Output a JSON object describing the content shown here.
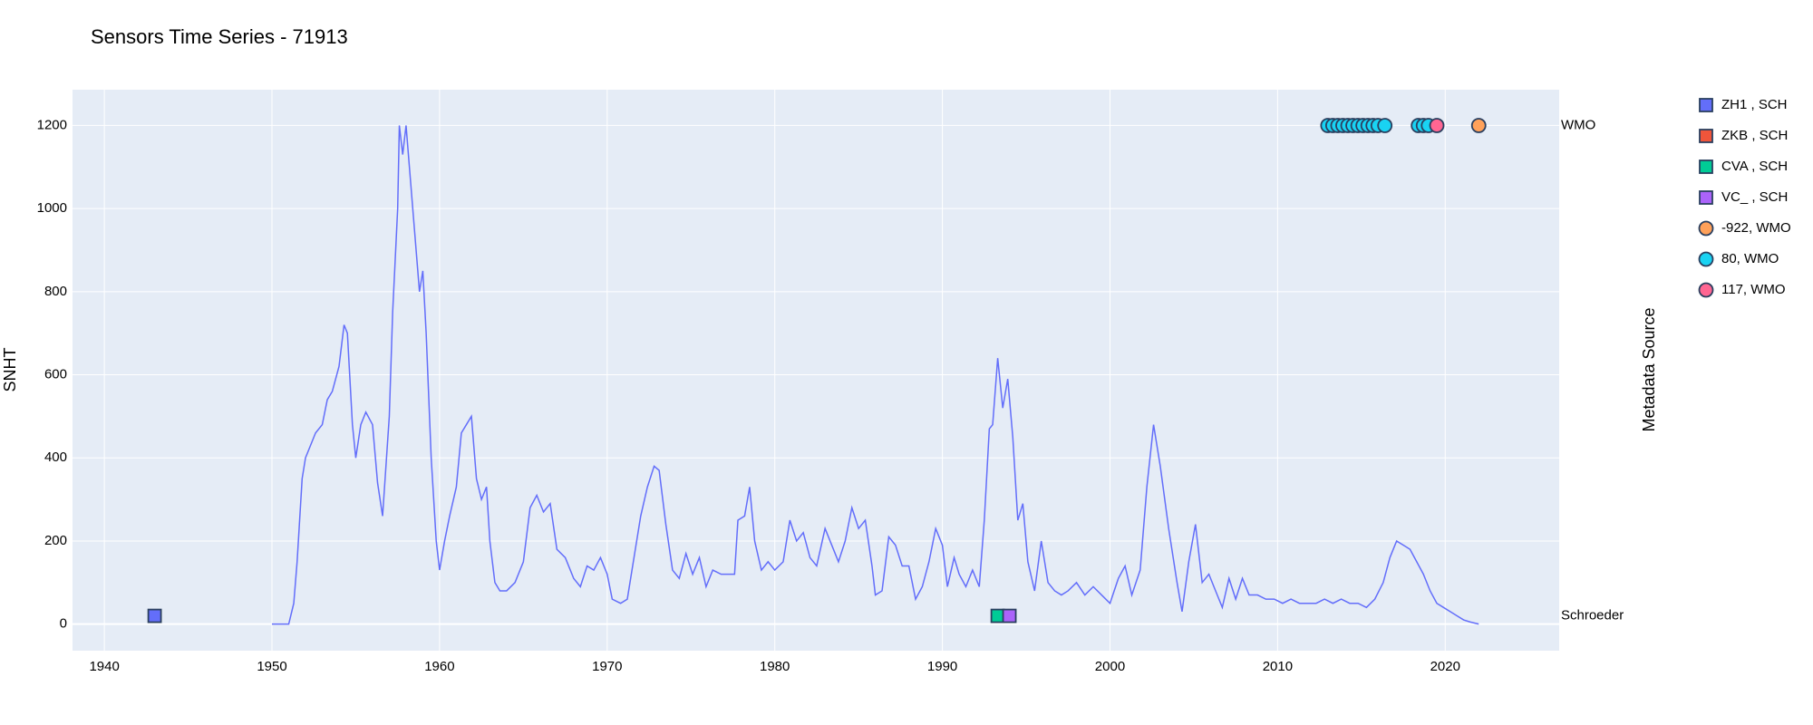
{
  "chart_data": {
    "type": "line",
    "title": "Sensors Time Series - 71913",
    "ylabel": "SNHT",
    "y2label": "Metadata Source",
    "xlim": [
      1938.1,
      2026.8
    ],
    "xticks": [
      1940,
      1950,
      1960,
      1970,
      1980,
      1990,
      2000,
      2010,
      2020
    ],
    "ylim": [
      -64,
      1286
    ],
    "yticks": [
      0,
      200,
      400,
      600,
      800,
      1000,
      1200
    ],
    "y2lim": [
      -0.071,
      1.073
    ],
    "y2ticks": [
      {
        "value": 0,
        "label": "Schroeder"
      },
      {
        "value": 1,
        "label": "WMO"
      }
    ],
    "grid": true,
    "background": "#e5ecf6",
    "legend": "right",
    "series": [
      {
        "type": "line",
        "color": "#636efa",
        "axis": "y",
        "x": [
          1950.0,
          1951.0,
          1951.3,
          1951.5,
          1951.8,
          1952.0,
          1952.3,
          1952.6,
          1953.0,
          1953.3,
          1953.6,
          1954.0,
          1954.3,
          1954.5,
          1954.8,
          1955.0,
          1955.3,
          1955.6,
          1956.0,
          1956.3,
          1956.6,
          1957.0,
          1957.2,
          1957.5,
          1957.6,
          1957.8,
          1958.0,
          1958.2,
          1958.5,
          1958.8,
          1959.0,
          1959.2,
          1959.5,
          1959.8,
          1960.0,
          1960.3,
          1960.6,
          1961.0,
          1961.3,
          1961.6,
          1961.9,
          1962.2,
          1962.5,
          1962.8,
          1963.0,
          1963.3,
          1963.6,
          1964.0,
          1964.5,
          1965.0,
          1965.4,
          1965.8,
          1966.2,
          1966.6,
          1967.0,
          1967.5,
          1968.0,
          1968.4,
          1968.8,
          1969.2,
          1969.6,
          1970.0,
          1970.3,
          1970.8,
          1971.2,
          1971.6,
          1972.0,
          1972.4,
          1972.8,
          1973.1,
          1973.5,
          1973.9,
          1974.3,
          1974.7,
          1975.1,
          1975.5,
          1975.9,
          1976.3,
          1976.8,
          1977.2,
          1977.6,
          1977.8,
          1978.2,
          1978.5,
          1978.8,
          1979.2,
          1979.6,
          1980.0,
          1980.5,
          1980.9,
          1981.3,
          1981.7,
          1982.1,
          1982.5,
          1983.0,
          1983.4,
          1983.8,
          1984.2,
          1984.6,
          1985.0,
          1985.4,
          1985.8,
          1986.0,
          1986.4,
          1986.8,
          1987.2,
          1987.6,
          1988.0,
          1988.4,
          1988.8,
          1989.2,
          1989.6,
          1990.0,
          1990.3,
          1990.7,
          1991.0,
          1991.4,
          1991.8,
          1992.2,
          1992.5,
          1992.8,
          1993.0,
          1993.3,
          1993.6,
          1993.9,
          1994.2,
          1994.5,
          1994.8,
          1995.1,
          1995.5,
          1995.9,
          1996.3,
          1996.7,
          1997.1,
          1997.5,
          1998.0,
          1998.5,
          1999.0,
          1999.5,
          2000.0,
          2000.5,
          2000.9,
          2001.3,
          2001.8,
          2002.2,
          2002.6,
          2003.0,
          2003.5,
          2004.0,
          2004.3,
          2004.7,
          2005.1,
          2005.5,
          2005.9,
          2006.3,
          2006.7,
          2007.1,
          2007.5,
          2007.9,
          2008.3,
          2008.8,
          2009.3,
          2009.8,
          2010.3,
          2010.8,
          2011.3,
          2011.8,
          2012.3,
          2012.8,
          2013.3,
          2013.8,
          2014.3,
          2014.8,
          2015.3,
          2015.8,
          2016.3,
          2016.7,
          2017.1,
          2017.5,
          2017.9,
          2018.3,
          2018.7,
          2019.1,
          2019.5,
          2019.9,
          2020.3,
          2020.7,
          2021.1,
          2021.5,
          2022.0
        ],
        "values": [
          0,
          0,
          50,
          150,
          350,
          400,
          430,
          460,
          480,
          540,
          560,
          620,
          720,
          700,
          480,
          400,
          480,
          510,
          480,
          340,
          260,
          500,
          750,
          1000,
          1200,
          1130,
          1200,
          1100,
          950,
          800,
          850,
          700,
          400,
          200,
          130,
          200,
          260,
          330,
          460,
          480,
          500,
          350,
          300,
          330,
          200,
          100,
          80,
          80,
          100,
          150,
          280,
          310,
          270,
          290,
          180,
          160,
          110,
          90,
          140,
          130,
          160,
          120,
          60,
          50,
          60,
          160,
          260,
          330,
          380,
          370,
          240,
          130,
          110,
          170,
          120,
          160,
          90,
          130,
          120,
          120,
          120,
          250,
          260,
          330,
          200,
          130,
          150,
          130,
          150,
          250,
          200,
          220,
          160,
          140,
          230,
          190,
          150,
          200,
          280,
          230,
          250,
          140,
          70,
          80,
          210,
          190,
          140,
          140,
          60,
          90,
          150,
          230,
          190,
          90,
          160,
          120,
          90,
          130,
          90,
          250,
          470,
          480,
          640,
          520,
          590,
          450,
          250,
          290,
          150,
          80,
          200,
          100,
          80,
          70,
          80,
          100,
          70,
          90,
          70,
          50,
          110,
          140,
          70,
          130,
          330,
          480,
          380,
          230,
          100,
          30,
          150,
          240,
          100,
          120,
          80,
          40,
          110,
          60,
          110,
          70,
          70,
          60,
          60,
          50,
          60,
          50,
          50,
          50,
          60,
          50,
          60,
          50,
          50,
          40,
          60,
          100,
          160,
          200,
          190,
          180,
          150,
          120,
          80,
          50,
          40,
          30,
          20,
          10,
          5,
          0
        ]
      },
      {
        "type": "scatter",
        "name": "ZH1 , SCH",
        "symbol": "square",
        "color": "#636efa",
        "axis": "y2",
        "x": [
          1943.0
        ],
        "values": [
          0
        ]
      },
      {
        "type": "scatter",
        "name": "ZKB , SCH",
        "symbol": "square",
        "color": "#ef553b",
        "axis": "y2",
        "x": [],
        "values": []
      },
      {
        "type": "scatter",
        "name": "CVA , SCH",
        "symbol": "square",
        "color": "#00cc96",
        "axis": "y2",
        "x": [
          1993.3
        ],
        "values": [
          0
        ]
      },
      {
        "type": "scatter",
        "name": "VC_ , SCH",
        "symbol": "square",
        "color": "#ab63fa",
        "axis": "y2",
        "x": [
          1994.0
        ],
        "values": [
          0
        ]
      },
      {
        "type": "scatter",
        "name": "-922, WMO",
        "symbol": "circle",
        "color": "#ffa15a",
        "axis": "y2",
        "x": [
          2022.0
        ],
        "values": [
          1
        ]
      },
      {
        "type": "scatter",
        "name": "80, WMO",
        "symbol": "circle",
        "color": "#19d3f3",
        "axis": "y2",
        "x": [
          2013.0,
          2013.3,
          2013.6,
          2013.9,
          2014.2,
          2014.5,
          2014.8,
          2015.1,
          2015.4,
          2015.7,
          2016.0,
          2016.4,
          2018.4,
          2018.7,
          2019.0
        ],
        "values": [
          1,
          1,
          1,
          1,
          1,
          1,
          1,
          1,
          1,
          1,
          1,
          1,
          1,
          1,
          1
        ]
      },
      {
        "type": "scatter",
        "name": "117, WMO",
        "symbol": "circle",
        "color": "#ff6692",
        "axis": "y2",
        "x": [
          2019.5
        ],
        "values": [
          1
        ]
      }
    ]
  }
}
